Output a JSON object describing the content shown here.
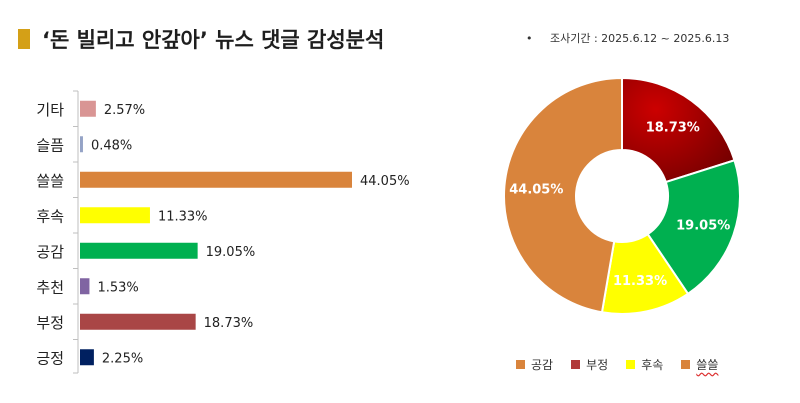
{
  "title": "‘돈 빌리고 안갚아’ 뉴스 댓글 감성분석",
  "period_bullet": "•",
  "period": "조사기간 : 2025.6.12 ~ 2025.6.13",
  "chart_data": [
    {
      "type": "bar",
      "orientation": "horizontal",
      "categories": [
        "기타",
        "슬픔",
        "쓸쓸",
        "후속",
        "공감",
        "추천",
        "부정",
        "긍정"
      ],
      "values": [
        2.57,
        0.48,
        44.05,
        11.33,
        19.05,
        1.53,
        18.73,
        2.25
      ],
      "value_labels": [
        "2.57%",
        "0.48%",
        "44.05%",
        "11.33%",
        "19.05%",
        "1.53%",
        "18.73%",
        "2.25%"
      ],
      "colors": [
        "#d99594",
        "#95a3c6",
        "#d9843c",
        "#ffff00",
        "#00b050",
        "#8064a2",
        "#a94646",
        "#002060"
      ],
      "xlim": [
        0,
        50
      ],
      "grid": false
    },
    {
      "type": "pie",
      "donut": true,
      "labels": [
        "부정",
        "공감",
        "후속",
        "쓸쓸"
      ],
      "values": [
        18.73,
        19.05,
        11.33,
        44.05
      ],
      "value_labels": [
        "18.73%",
        "19.05%",
        "11.33%",
        "44.05%"
      ],
      "colors": [
        "#b01010",
        "#00b050",
        "#ffff00",
        "#d9843c"
      ],
      "label_colors": [
        "#ffffff",
        "#ffffff",
        "#ffffff",
        "#ffffff"
      ],
      "legend_position": "bottom",
      "legend": [
        {
          "label": "공감",
          "color": "#d9843c"
        },
        {
          "label": "부정",
          "color": "#b03a3a"
        },
        {
          "label": "후속",
          "color": "#ffff00"
        },
        {
          "label": "쓸쓸",
          "color": "#d9843c"
        }
      ]
    }
  ]
}
